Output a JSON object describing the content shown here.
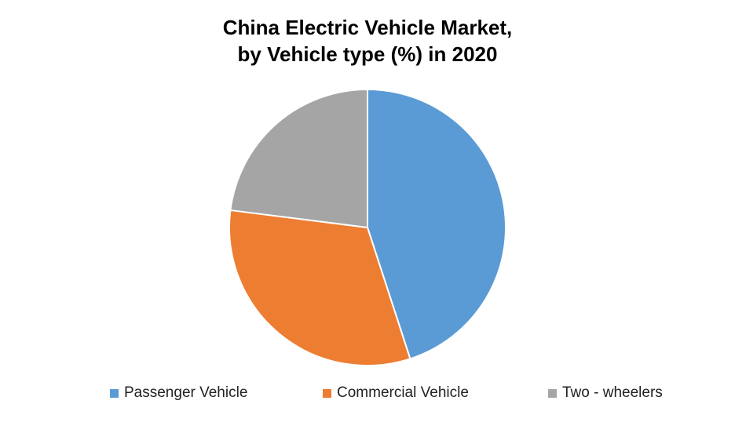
{
  "chart_data": {
    "type": "pie",
    "title_line1": "China Electric Vehicle Market,",
    "title_line2": "by Vehicle type (%) in 2020",
    "categories": [
      "Passenger Vehicle",
      "Commercial Vehicle",
      "Two - wheelers"
    ],
    "values": [
      45,
      32,
      23
    ],
    "colors": [
      "#5B9BD5",
      "#ED7D31",
      "#A5A5A5"
    ],
    "legend_position": "bottom"
  }
}
